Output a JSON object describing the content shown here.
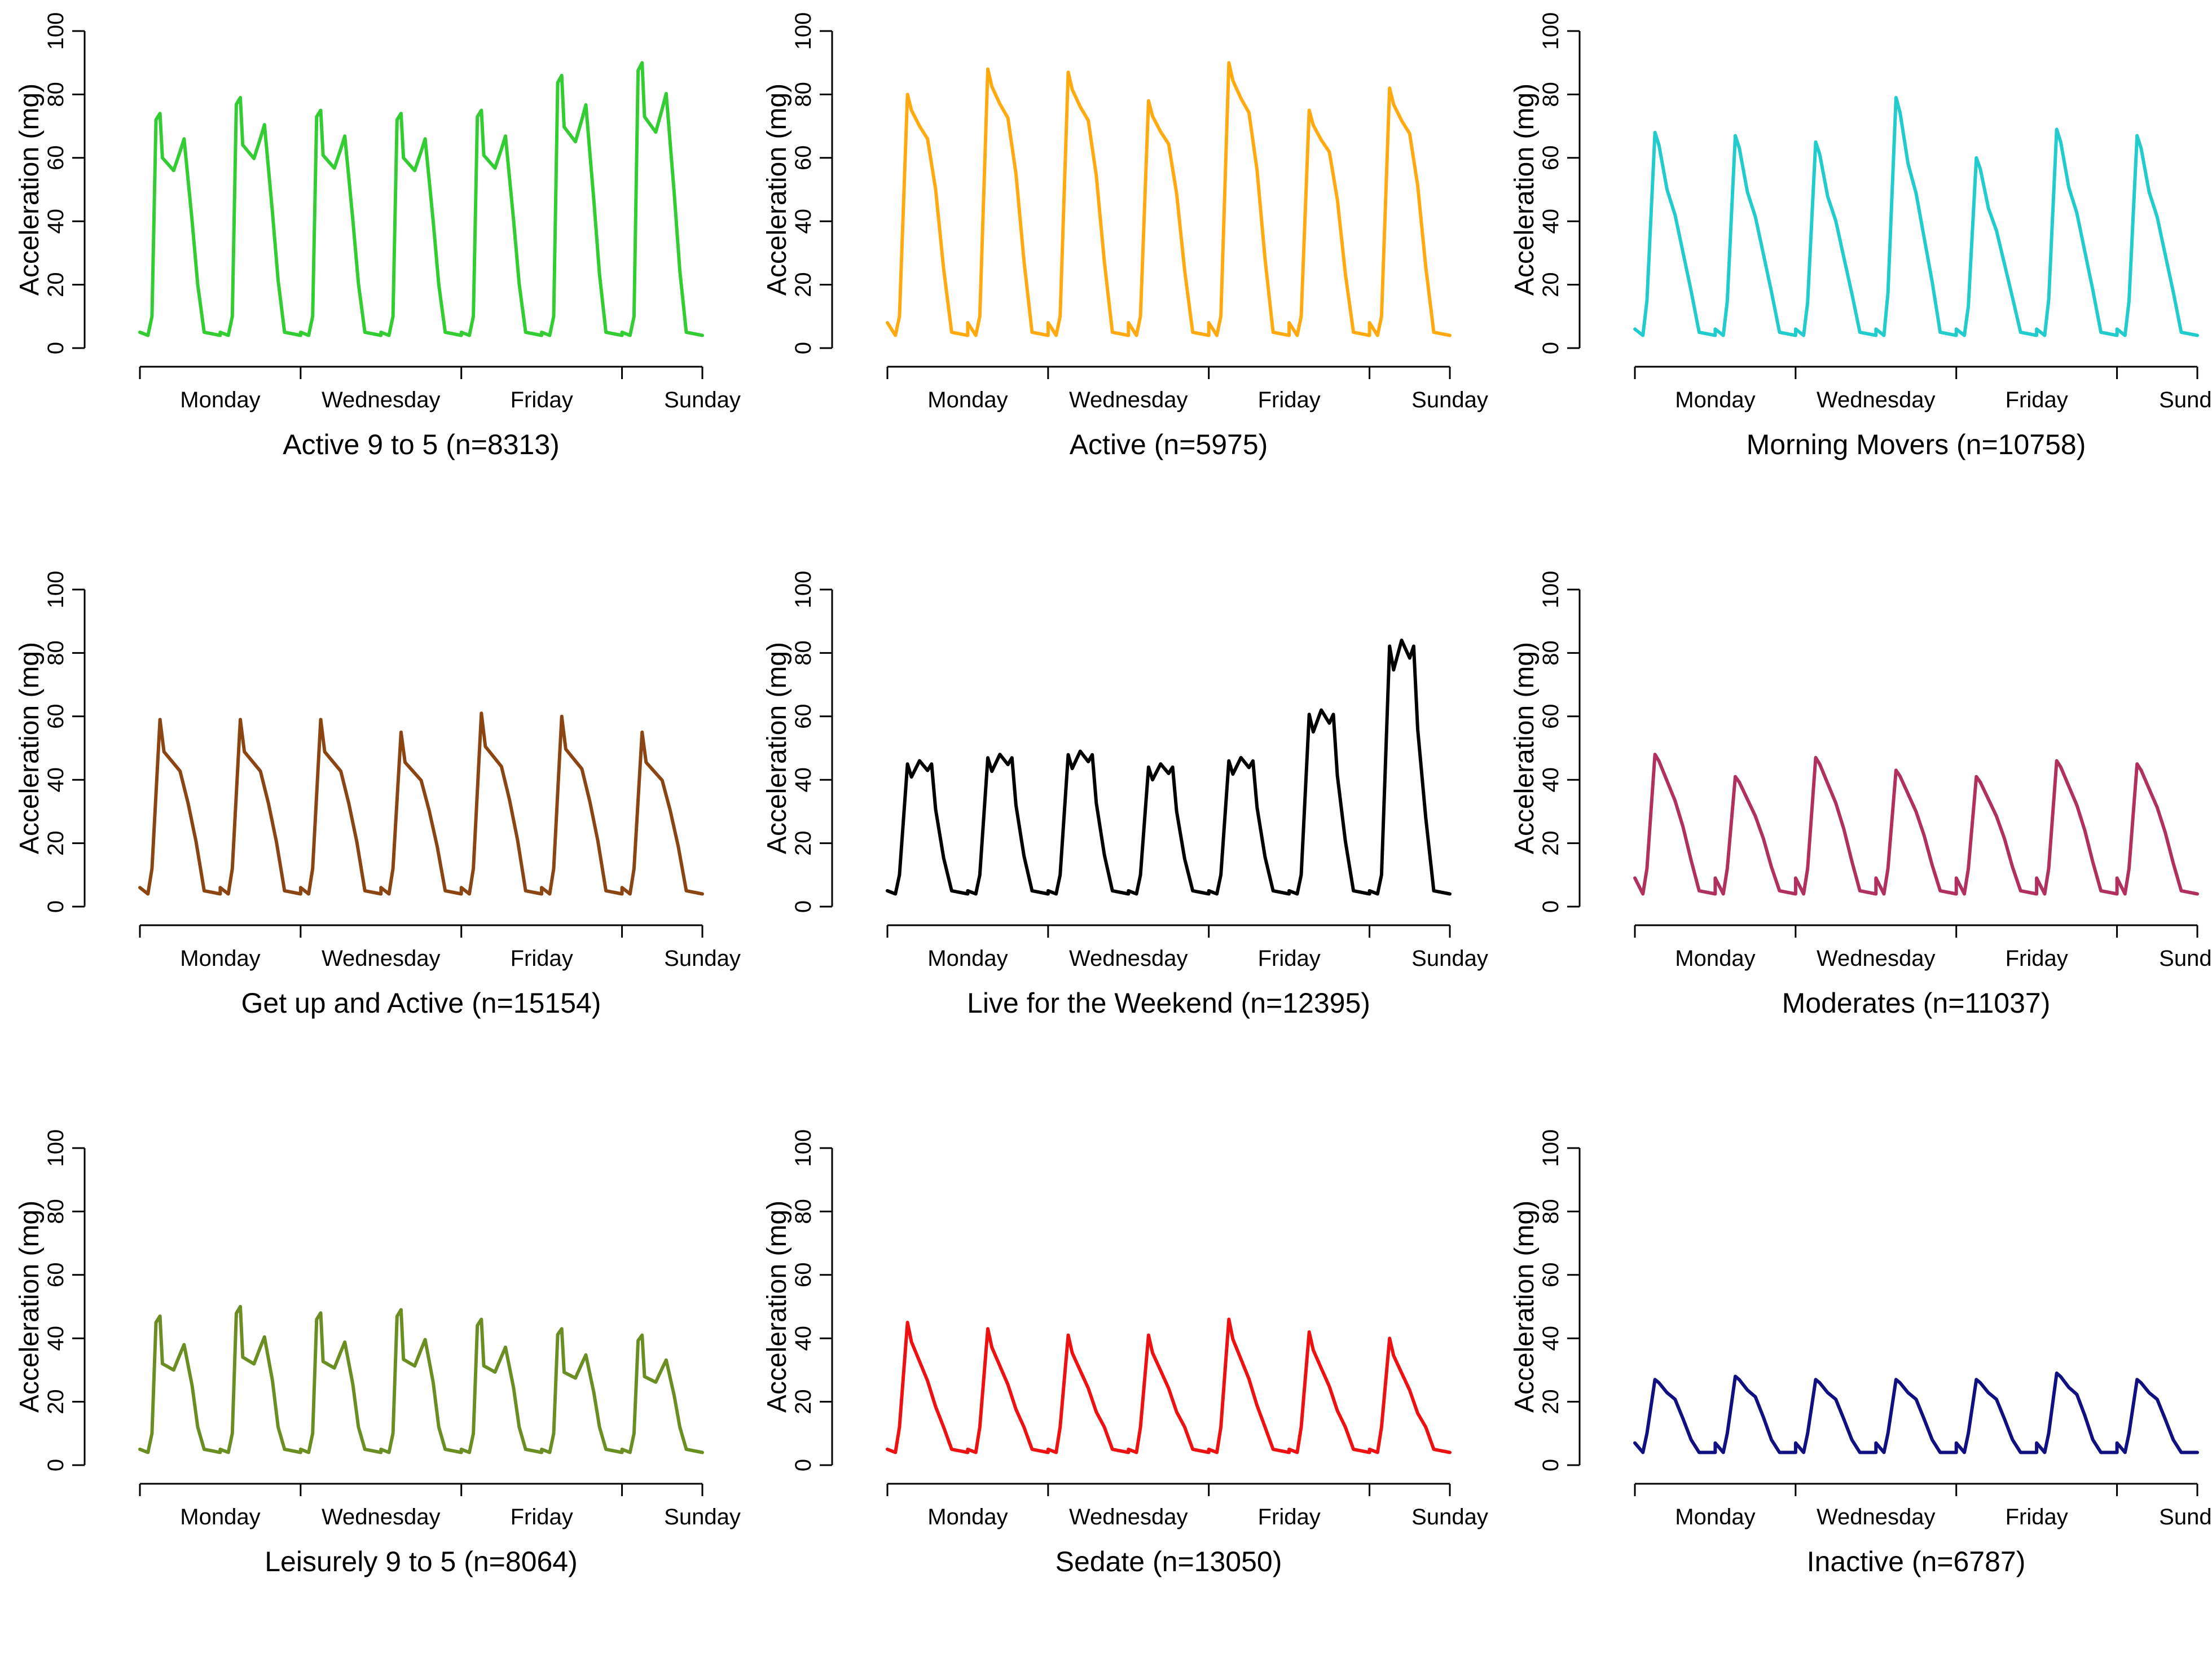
{
  "chart_data": [
    {
      "type": "line",
      "title": "Active 9 to 5 (n=8313)",
      "ylabel": "Acceleration (mg)",
      "xlabel": "",
      "color": "#33CC33",
      "x_tick_labels": [
        "Monday",
        "Wednesday",
        "Friday",
        "Sunday"
      ],
      "y_ticks": [
        0,
        20,
        40,
        60,
        80,
        100
      ],
      "ylim": [
        0,
        100
      ],
      "days": 7,
      "series": [
        {
          "name": "Active 9 to 5",
          "day_peaks": [
            74,
            79,
            75,
            74,
            75,
            86,
            90
          ],
          "day_profile": [
            [
              0.0,
              5
            ],
            [
              0.1,
              4
            ],
            [
              0.15,
              10
            ],
            [
              0.2,
              72
            ],
            [
              0.25,
              74
            ],
            [
              0.28,
              60
            ],
            [
              0.35,
              58
            ],
            [
              0.42,
              56
            ],
            [
              0.5,
              62
            ],
            [
              0.55,
              66
            ],
            [
              0.65,
              40
            ],
            [
              0.72,
              20
            ],
            [
              0.8,
              5
            ],
            [
              1.0,
              4
            ]
          ]
        }
      ]
    },
    {
      "type": "line",
      "title": "Active (n=5975)",
      "ylabel": "Acceleration (mg)",
      "xlabel": "",
      "color": "#FFAA11",
      "x_tick_labels": [
        "Monday",
        "Wednesday",
        "Friday",
        "Sunday"
      ],
      "y_ticks": [
        0,
        20,
        40,
        60,
        80,
        100
      ],
      "ylim": [
        0,
        100
      ],
      "days": 7,
      "series": [
        {
          "name": "Active",
          "day_peaks": [
            80,
            88,
            87,
            78,
            90,
            75,
            82
          ],
          "day_profile": [
            [
              0.0,
              8
            ],
            [
              0.1,
              4
            ],
            [
              0.15,
              10
            ],
            [
              0.25,
              80
            ],
            [
              0.3,
              75
            ],
            [
              0.4,
              70
            ],
            [
              0.5,
              66
            ],
            [
              0.6,
              50
            ],
            [
              0.7,
              25
            ],
            [
              0.8,
              5
            ],
            [
              1.0,
              4
            ]
          ]
        }
      ]
    },
    {
      "type": "line",
      "title": "Morning Movers (n=10758)",
      "ylabel": "Acceleration (mg)",
      "xlabel": "",
      "color": "#22CCCC",
      "x_tick_labels": [
        "Monday",
        "Wednesday",
        "Friday",
        "Sunday"
      ],
      "y_ticks": [
        0,
        20,
        40,
        60,
        80,
        100
      ],
      "ylim": [
        0,
        100
      ],
      "days": 7,
      "series": [
        {
          "name": "Morning Movers",
          "day_peaks": [
            68,
            67,
            65,
            79,
            60,
            69,
            67
          ],
          "day_profile": [
            [
              0.0,
              6
            ],
            [
              0.1,
              4
            ],
            [
              0.15,
              15
            ],
            [
              0.25,
              68
            ],
            [
              0.3,
              64
            ],
            [
              0.4,
              50
            ],
            [
              0.5,
              42
            ],
            [
              0.6,
              30
            ],
            [
              0.7,
              18
            ],
            [
              0.8,
              5
            ],
            [
              1.0,
              4
            ]
          ]
        }
      ]
    },
    {
      "type": "line",
      "title": "Get up and Active (n=15154)",
      "ylabel": "Acceleration (mg)",
      "xlabel": "",
      "color": "#8B4513",
      "x_tick_labels": [
        "Monday",
        "Wednesday",
        "Friday",
        "Sunday"
      ],
      "y_ticks": [
        0,
        20,
        40,
        60,
        80,
        100
      ],
      "ylim": [
        0,
        100
      ],
      "days": 7,
      "series": [
        {
          "name": "Get up and Active",
          "day_peaks": [
            59,
            59,
            59,
            55,
            61,
            60,
            55
          ],
          "day_profile": [
            [
              0.0,
              6
            ],
            [
              0.1,
              4
            ],
            [
              0.15,
              12
            ],
            [
              0.25,
              58
            ],
            [
              0.3,
              48
            ],
            [
              0.4,
              45
            ],
            [
              0.5,
              42
            ],
            [
              0.6,
              32
            ],
            [
              0.7,
              20
            ],
            [
              0.8,
              5
            ],
            [
              1.0,
              4
            ]
          ]
        }
      ]
    },
    {
      "type": "line",
      "title": "Live for the Weekend (n=12395)",
      "ylabel": "Acceleration (mg)",
      "xlabel": "",
      "color": "#000000",
      "x_tick_labels": [
        "Monday",
        "Wednesday",
        "Friday",
        "Sunday"
      ],
      "y_ticks": [
        0,
        20,
        40,
        60,
        80,
        100
      ],
      "ylim": [
        0,
        100
      ],
      "days": 7,
      "series": [
        {
          "name": "Live for the Weekend",
          "day_peaks": [
            46,
            48,
            49,
            45,
            47,
            62,
            84
          ],
          "day_profile": [
            [
              0.0,
              5
            ],
            [
              0.1,
              4
            ],
            [
              0.15,
              10
            ],
            [
              0.25,
              44
            ],
            [
              0.3,
              40
            ],
            [
              0.4,
              45
            ],
            [
              0.5,
              42
            ],
            [
              0.55,
              44
            ],
            [
              0.6,
              30
            ],
            [
              0.7,
              15
            ],
            [
              0.8,
              5
            ],
            [
              1.0,
              4
            ]
          ]
        }
      ]
    },
    {
      "type": "line",
      "title": "Moderates (n=11037)",
      "ylabel": "Acceleration (mg)",
      "xlabel": "",
      "color": "#B03060",
      "x_tick_labels": [
        "Monday",
        "Wednesday",
        "Friday",
        "Sunday"
      ],
      "y_ticks": [
        0,
        20,
        40,
        60,
        80,
        100
      ],
      "ylim": [
        0,
        100
      ],
      "days": 7,
      "series": [
        {
          "name": "Moderates",
          "day_peaks": [
            48,
            41,
            47,
            43,
            41,
            46,
            45
          ],
          "day_profile": [
            [
              0.0,
              9
            ],
            [
              0.1,
              4
            ],
            [
              0.15,
              12
            ],
            [
              0.25,
              46
            ],
            [
              0.3,
              44
            ],
            [
              0.4,
              38
            ],
            [
              0.5,
              32
            ],
            [
              0.6,
              24
            ],
            [
              0.7,
              14
            ],
            [
              0.8,
              5
            ],
            [
              1.0,
              4
            ]
          ]
        }
      ]
    },
    {
      "type": "line",
      "title": "Leisurely 9 to 5 (n=8064)",
      "ylabel": "Acceleration (mg)",
      "xlabel": "",
      "color": "#6B8E23",
      "x_tick_labels": [
        "Monday",
        "Wednesday",
        "Friday",
        "Sunday"
      ],
      "y_ticks": [
        0,
        20,
        40,
        60,
        80,
        100
      ],
      "ylim": [
        0,
        100
      ],
      "days": 7,
      "series": [
        {
          "name": "Leisurely 9 to 5",
          "day_peaks": [
            47,
            50,
            48,
            49,
            46,
            43,
            41
          ],
          "day_profile": [
            [
              0.0,
              5
            ],
            [
              0.1,
              4
            ],
            [
              0.15,
              10
            ],
            [
              0.2,
              45
            ],
            [
              0.25,
              47
            ],
            [
              0.28,
              32
            ],
            [
              0.35,
              31
            ],
            [
              0.42,
              30
            ],
            [
              0.5,
              35
            ],
            [
              0.55,
              38
            ],
            [
              0.65,
              25
            ],
            [
              0.72,
              12
            ],
            [
              0.8,
              5
            ],
            [
              1.0,
              4
            ]
          ]
        }
      ]
    },
    {
      "type": "line",
      "title": "Sedate (n=13050)",
      "ylabel": "Acceleration (mg)",
      "xlabel": "",
      "color": "#EE1111",
      "x_tick_labels": [
        "Monday",
        "Wednesday",
        "Friday",
        "Sunday"
      ],
      "y_ticks": [
        0,
        20,
        40,
        60,
        80,
        100
      ],
      "ylim": [
        0,
        100
      ],
      "days": 7,
      "series": [
        {
          "name": "Sedate",
          "day_peaks": [
            45,
            43,
            41,
            41,
            46,
            42,
            40
          ],
          "day_profile": [
            [
              0.0,
              5
            ],
            [
              0.1,
              4
            ],
            [
              0.15,
              12
            ],
            [
              0.25,
              44
            ],
            [
              0.3,
              38
            ],
            [
              0.4,
              32
            ],
            [
              0.5,
              26
            ],
            [
              0.6,
              18
            ],
            [
              0.7,
              12
            ],
            [
              0.8,
              5
            ],
            [
              1.0,
              4
            ]
          ]
        }
      ]
    },
    {
      "type": "line",
      "title": "Inactive (n=6787)",
      "ylabel": "Acceleration (mg)",
      "xlabel": "",
      "color": "#101080",
      "x_tick_labels": [
        "Monday",
        "Wednesday",
        "Friday",
        "Sunday"
      ],
      "y_ticks": [
        0,
        20,
        40,
        60,
        80,
        100
      ],
      "ylim": [
        0,
        100
      ],
      "days": 7,
      "series": [
        {
          "name": "Inactive",
          "day_peaks": [
            27,
            28,
            27,
            27,
            27,
            29,
            27
          ],
          "day_profile": [
            [
              0.0,
              7
            ],
            [
              0.1,
              4
            ],
            [
              0.15,
              10
            ],
            [
              0.25,
              26
            ],
            [
              0.3,
              25
            ],
            [
              0.4,
              22
            ],
            [
              0.5,
              20
            ],
            [
              0.6,
              14
            ],
            [
              0.7,
              8
            ],
            [
              0.8,
              4
            ],
            [
              1.0,
              4
            ]
          ]
        }
      ]
    }
  ]
}
